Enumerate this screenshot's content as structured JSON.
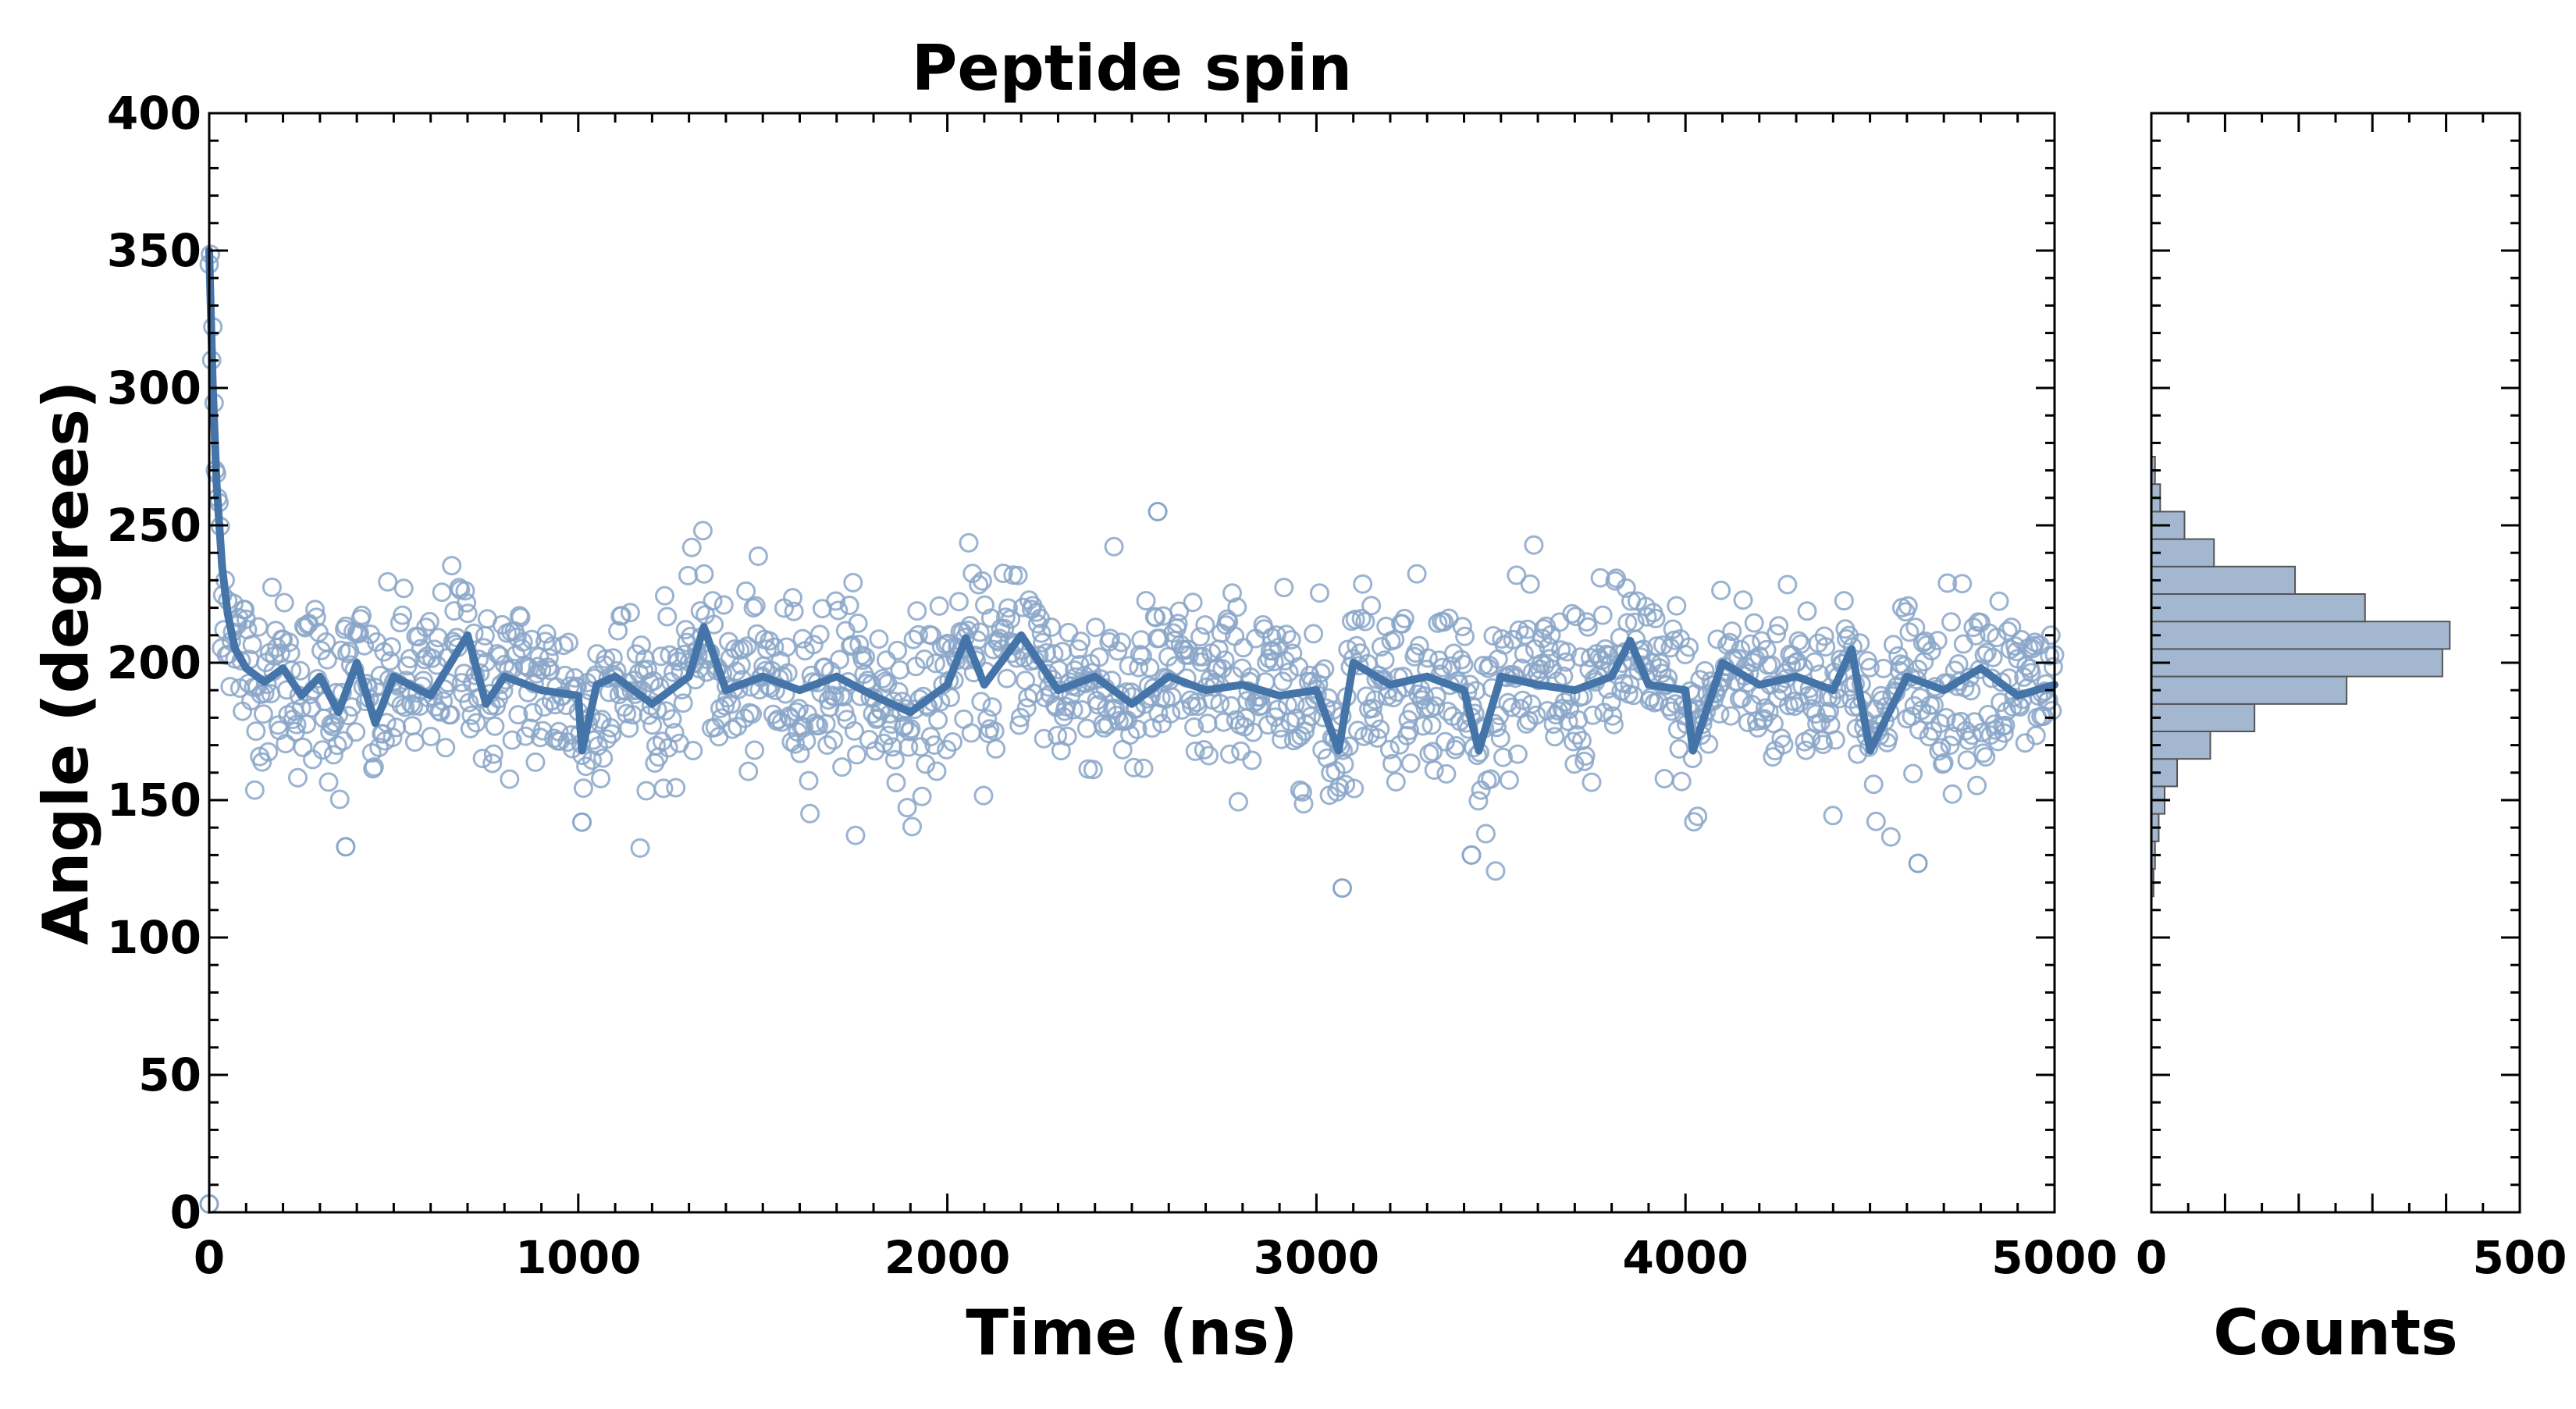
{
  "chart_data": {
    "type": "scatter",
    "title": "Peptide spin",
    "xlabel": "Time (ns)",
    "ylabel": "Angle (degrees)",
    "xlim": [
      0,
      5000
    ],
    "ylim": [
      0,
      400
    ],
    "x_ticks": [
      0,
      1000,
      2000,
      3000,
      4000,
      5000
    ],
    "y_ticks": [
      0,
      50,
      100,
      150,
      200,
      250,
      300,
      350,
      400
    ],
    "grid": false,
    "legend": "none",
    "scatter": {
      "marker": "open-circle",
      "n_points": 1500,
      "x_range": [
        0,
        5000
      ],
      "initial_value": 350,
      "settle_mean": 192,
      "spread": 16,
      "visible_outliers": [
        {
          "x": 0,
          "y": 3
        },
        {
          "x": 2570,
          "y": 255
        },
        {
          "x": 3070,
          "y": 118
        },
        {
          "x": 370,
          "y": 133
        },
        {
          "x": 4630,
          "y": 127
        },
        {
          "x": 3420,
          "y": 130
        },
        {
          "x": 1010,
          "y": 142
        }
      ]
    },
    "smoothed_series": {
      "points": [
        [
          0,
          350
        ],
        [
          10,
          300
        ],
        [
          20,
          265
        ],
        [
          35,
          235
        ],
        [
          50,
          218
        ],
        [
          70,
          205
        ],
        [
          100,
          198
        ],
        [
          150,
          193
        ],
        [
          200,
          198
        ],
        [
          250,
          188
        ],
        [
          300,
          195
        ],
        [
          350,
          182
        ],
        [
          400,
          200
        ],
        [
          450,
          178
        ],
        [
          500,
          195
        ],
        [
          600,
          188
        ],
        [
          700,
          210
        ],
        [
          750,
          185
        ],
        [
          800,
          195
        ],
        [
          900,
          190
        ],
        [
          1000,
          188
        ],
        [
          1010,
          168
        ],
        [
          1050,
          192
        ],
        [
          1100,
          195
        ],
        [
          1200,
          185
        ],
        [
          1300,
          195
        ],
        [
          1340,
          213
        ],
        [
          1400,
          190
        ],
        [
          1500,
          195
        ],
        [
          1600,
          190
        ],
        [
          1700,
          195
        ],
        [
          1800,
          188
        ],
        [
          1900,
          182
        ],
        [
          2000,
          192
        ],
        [
          2050,
          209
        ],
        [
          2100,
          192
        ],
        [
          2200,
          210
        ],
        [
          2300,
          190
        ],
        [
          2400,
          195
        ],
        [
          2500,
          185
        ],
        [
          2600,
          195
        ],
        [
          2700,
          190
        ],
        [
          2800,
          192
        ],
        [
          2900,
          188
        ],
        [
          3000,
          190
        ],
        [
          3060,
          168
        ],
        [
          3100,
          200
        ],
        [
          3200,
          192
        ],
        [
          3300,
          195
        ],
        [
          3400,
          190
        ],
        [
          3440,
          168
        ],
        [
          3500,
          195
        ],
        [
          3600,
          192
        ],
        [
          3700,
          190
        ],
        [
          3800,
          195
        ],
        [
          3850,
          208
        ],
        [
          3900,
          192
        ],
        [
          4000,
          190
        ],
        [
          4020,
          168
        ],
        [
          4100,
          200
        ],
        [
          4200,
          192
        ],
        [
          4300,
          195
        ],
        [
          4400,
          190
        ],
        [
          4450,
          205
        ],
        [
          4500,
          168
        ],
        [
          4600,
          195
        ],
        [
          4700,
          190
        ],
        [
          4800,
          198
        ],
        [
          4900,
          188
        ],
        [
          5000,
          192
        ]
      ]
    },
    "histogram": {
      "xlabel": "Counts",
      "xlim": [
        0,
        500
      ],
      "x_ticks": [
        0,
        500
      ],
      "orientation": "horizontal",
      "bins": [
        {
          "y0": 115,
          "y1": 125,
          "count": 3
        },
        {
          "y0": 125,
          "y1": 135,
          "count": 5
        },
        {
          "y0": 135,
          "y1": 145,
          "count": 10
        },
        {
          "y0": 145,
          "y1": 155,
          "count": 18
        },
        {
          "y0": 155,
          "y1": 165,
          "count": 35
        },
        {
          "y0": 165,
          "y1": 175,
          "count": 80
        },
        {
          "y0": 175,
          "y1": 185,
          "count": 140
        },
        {
          "y0": 185,
          "y1": 195,
          "count": 265
        },
        {
          "y0": 195,
          "y1": 205,
          "count": 395
        },
        {
          "y0": 205,
          "y1": 215,
          "count": 405
        },
        {
          "y0": 215,
          "y1": 225,
          "count": 290
        },
        {
          "y0": 225,
          "y1": 235,
          "count": 195
        },
        {
          "y0": 235,
          "y1": 245,
          "count": 85
        },
        {
          "y0": 245,
          "y1": 255,
          "count": 45
        },
        {
          "y0": 255,
          "y1": 265,
          "count": 12
        },
        {
          "y0": 265,
          "y1": 275,
          "count": 5
        }
      ]
    },
    "colors": {
      "line": "#4574a8",
      "marker": "#8aa6c8",
      "hist_fill": "#a3b7d1",
      "hist_edge": "#555555",
      "axis": "#000000"
    }
  }
}
